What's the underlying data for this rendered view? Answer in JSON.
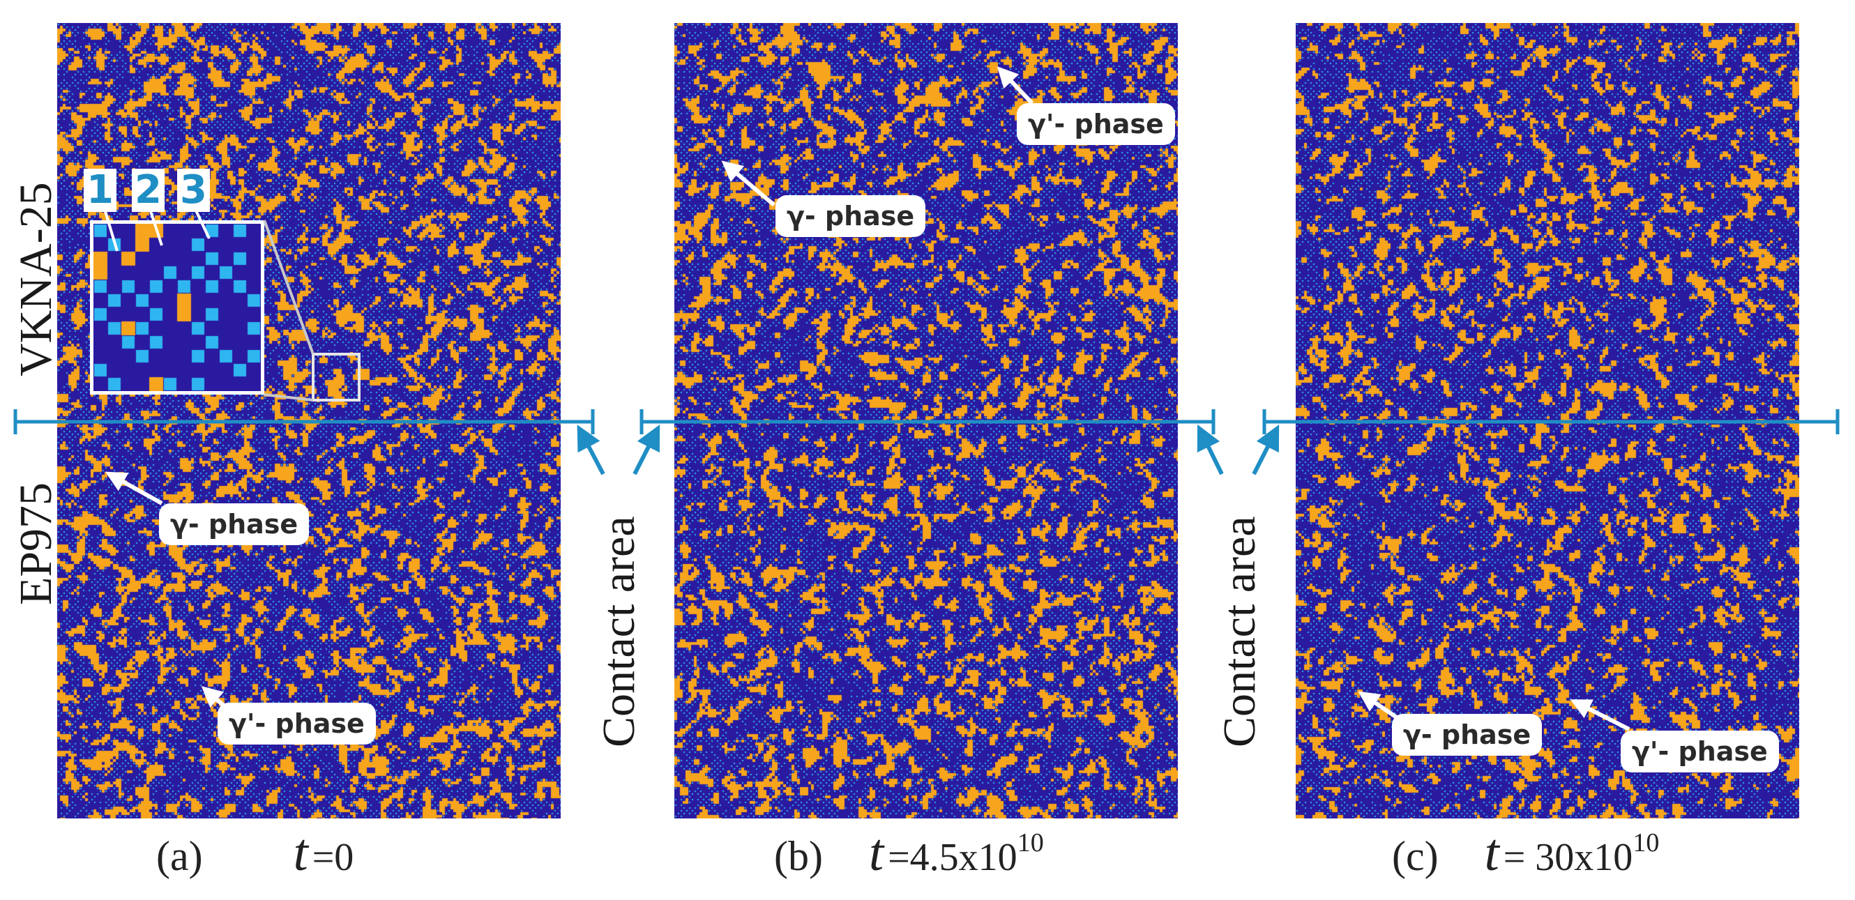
{
  "panels": [
    {
      "id": "a",
      "caption_letter": "(a)",
      "t_symbol": "t",
      "t_value": "=0",
      "t_sup": ""
    },
    {
      "id": "b",
      "caption_letter": "(b)",
      "t_symbol": "t",
      "t_value": "=4.5x10",
      "t_sup": "10"
    },
    {
      "id": "c",
      "caption_letter": "(c)",
      "t_symbol": "t",
      "t_value": "= 30x10",
      "t_sup": "10"
    }
  ],
  "material_labels": {
    "top": "VKNA-25",
    "bottom": "EP975"
  },
  "contact_labels": [
    "Contact area",
    "Contact area"
  ],
  "phase_labels": {
    "a_gamma": "γ- phase",
    "a_gamma_prime": "γ'- phase",
    "b_gamma_prime": "γ'- phase",
    "b_gamma": "γ- phase",
    "c_gamma": "γ- phase",
    "c_gamma_prime": "γ'- phase"
  },
  "inset_numbers": [
    "1",
    "2",
    "3"
  ],
  "colors": {
    "matrix_blue": "#2a1aa0",
    "dot_cyan": "#2fb6f0",
    "precipitate_orange": "#f6a51d",
    "contact_line": "#1f8ec4"
  }
}
